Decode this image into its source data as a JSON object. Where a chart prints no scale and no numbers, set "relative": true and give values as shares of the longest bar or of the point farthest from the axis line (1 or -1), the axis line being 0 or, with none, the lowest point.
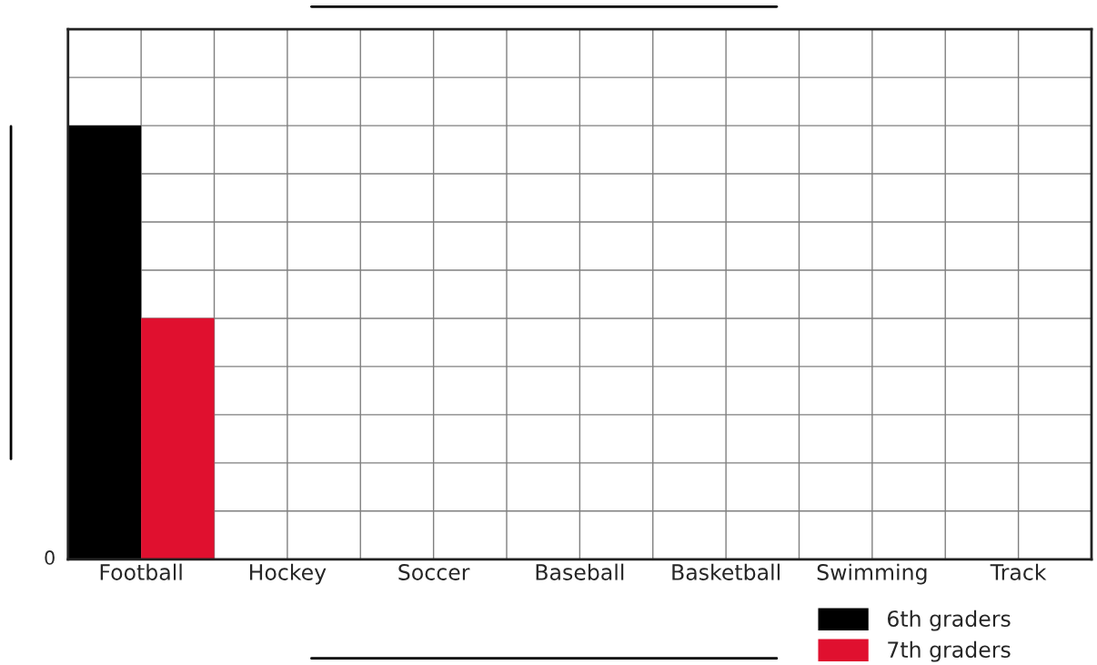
{
  "chart_data": {
    "type": "bar",
    "categories": [
      "Football",
      "Hockey",
      "Soccer",
      "Baseball",
      "Basketball",
      "Swimming",
      "Track"
    ],
    "series": [
      {
        "name": "6th graders",
        "color": "#000000",
        "values": [
          1,
          null,
          null,
          null,
          null,
          null,
          null
        ]
      },
      {
        "name": "7th graders",
        "color": "#e0102f",
        "values": [
          0.556,
          null,
          null,
          null,
          null,
          null,
          null
        ]
      }
    ],
    "relative": true,
    "annotations": [
      "0"
    ],
    "grid": true,
    "legend": "bottom right"
  }
}
